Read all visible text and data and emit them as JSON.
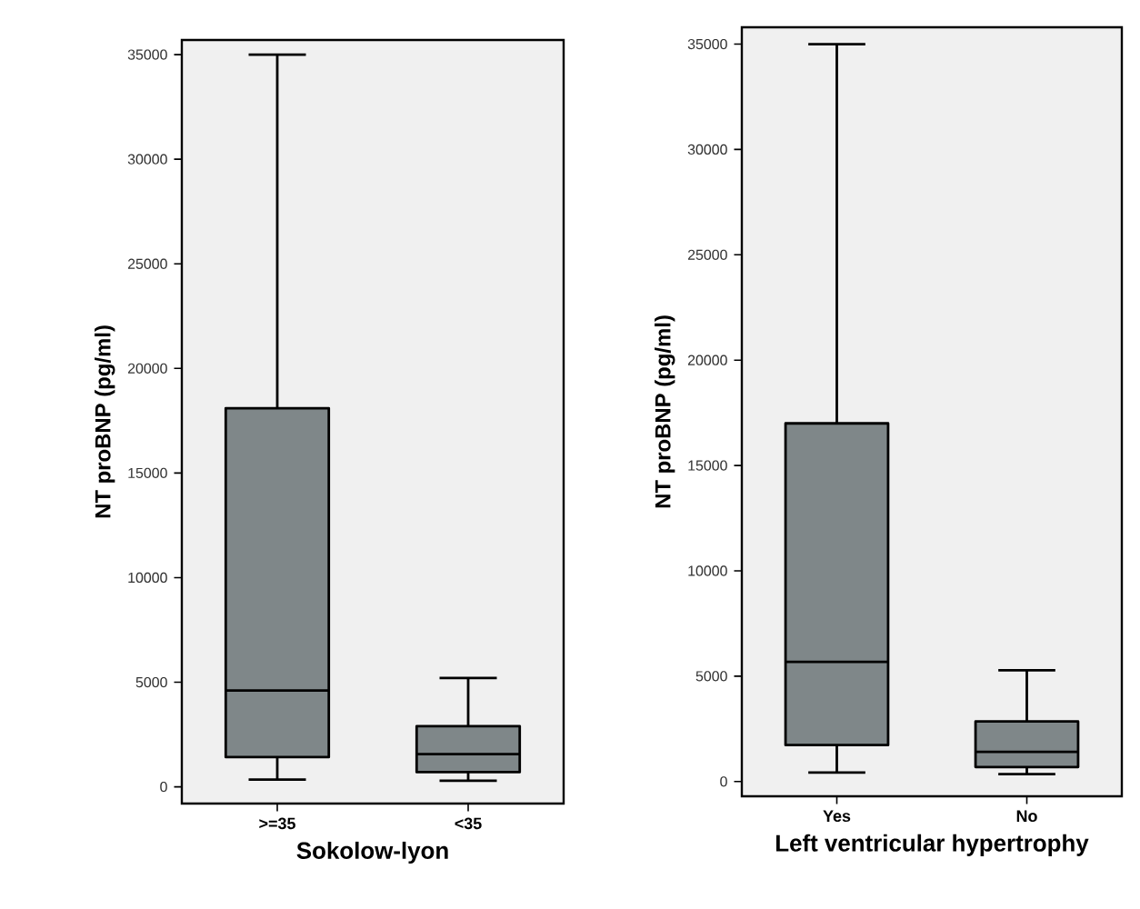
{
  "chart_data": [
    {
      "type": "box",
      "xlabel": "Sokolow-lyon",
      "ylabel": "NT proBNP (pg/ml)",
      "categories": [
        ">=35",
        "<35"
      ],
      "ylim": [
        -800,
        35700
      ],
      "yticks": [
        0,
        5000,
        10000,
        15000,
        20000,
        25000,
        30000,
        35000
      ],
      "series": [
        {
          "color": "#7f8789",
          "boxes": [
            {
              "low": 350,
              "q1": 1420,
              "median": 4600,
              "q3": 18100,
              "high": 35000
            },
            {
              "low": 290,
              "q1": 700,
              "median": 1560,
              "q3": 2900,
              "high": 5200
            }
          ]
        }
      ]
    },
    {
      "type": "box",
      "xlabel": "Left ventricular hypertrophy",
      "ylabel": "NT proBNP (pg/ml)",
      "categories": [
        "Yes",
        "No"
      ],
      "ylim": [
        -700,
        35800
      ],
      "yticks": [
        0,
        5000,
        10000,
        15000,
        20000,
        25000,
        30000,
        35000
      ],
      "series": [
        {
          "color": "#7f8789",
          "boxes": [
            {
              "low": 430,
              "q1": 1730,
              "median": 5680,
              "q3": 17000,
              "high": 35000
            },
            {
              "low": 350,
              "q1": 690,
              "median": 1410,
              "q3": 2850,
              "high": 5280
            }
          ]
        }
      ]
    }
  ]
}
